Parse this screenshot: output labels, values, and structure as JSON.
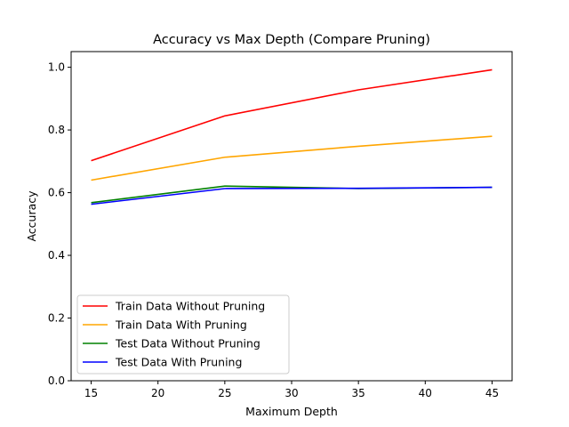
{
  "chart_data": {
    "type": "line",
    "title": "Accuracy vs Max Depth (Compare Pruning)",
    "xlabel": "Maximum Depth",
    "ylabel": "Accuracy",
    "x": [
      15,
      25,
      35,
      45
    ],
    "xlim": [
      13.5,
      46.5
    ],
    "ylim": [
      0.0,
      1.05
    ],
    "xticks": [
      "15",
      "20",
      "25",
      "30",
      "35",
      "40",
      "45"
    ],
    "yticks": [
      "0.0",
      "0.2",
      "0.4",
      "0.6",
      "0.8",
      "1.0"
    ],
    "grid": false,
    "legend_position": "lower-left",
    "series": [
      {
        "name": "Train Data Without Pruning",
        "color": "#ff0000",
        "values": [
          0.702,
          0.845,
          0.928,
          0.992
        ]
      },
      {
        "name": "Train Data With Pruning",
        "color": "#ffa500",
        "values": [
          0.64,
          0.713,
          0.748,
          0.78
        ]
      },
      {
        "name": "Test Data Without Pruning",
        "color": "#008000",
        "values": [
          0.568,
          0.621,
          0.613,
          0.617
        ]
      },
      {
        "name": "Test Data With Pruning",
        "color": "#0000ff",
        "values": [
          0.563,
          0.613,
          0.614,
          0.617
        ]
      }
    ]
  }
}
